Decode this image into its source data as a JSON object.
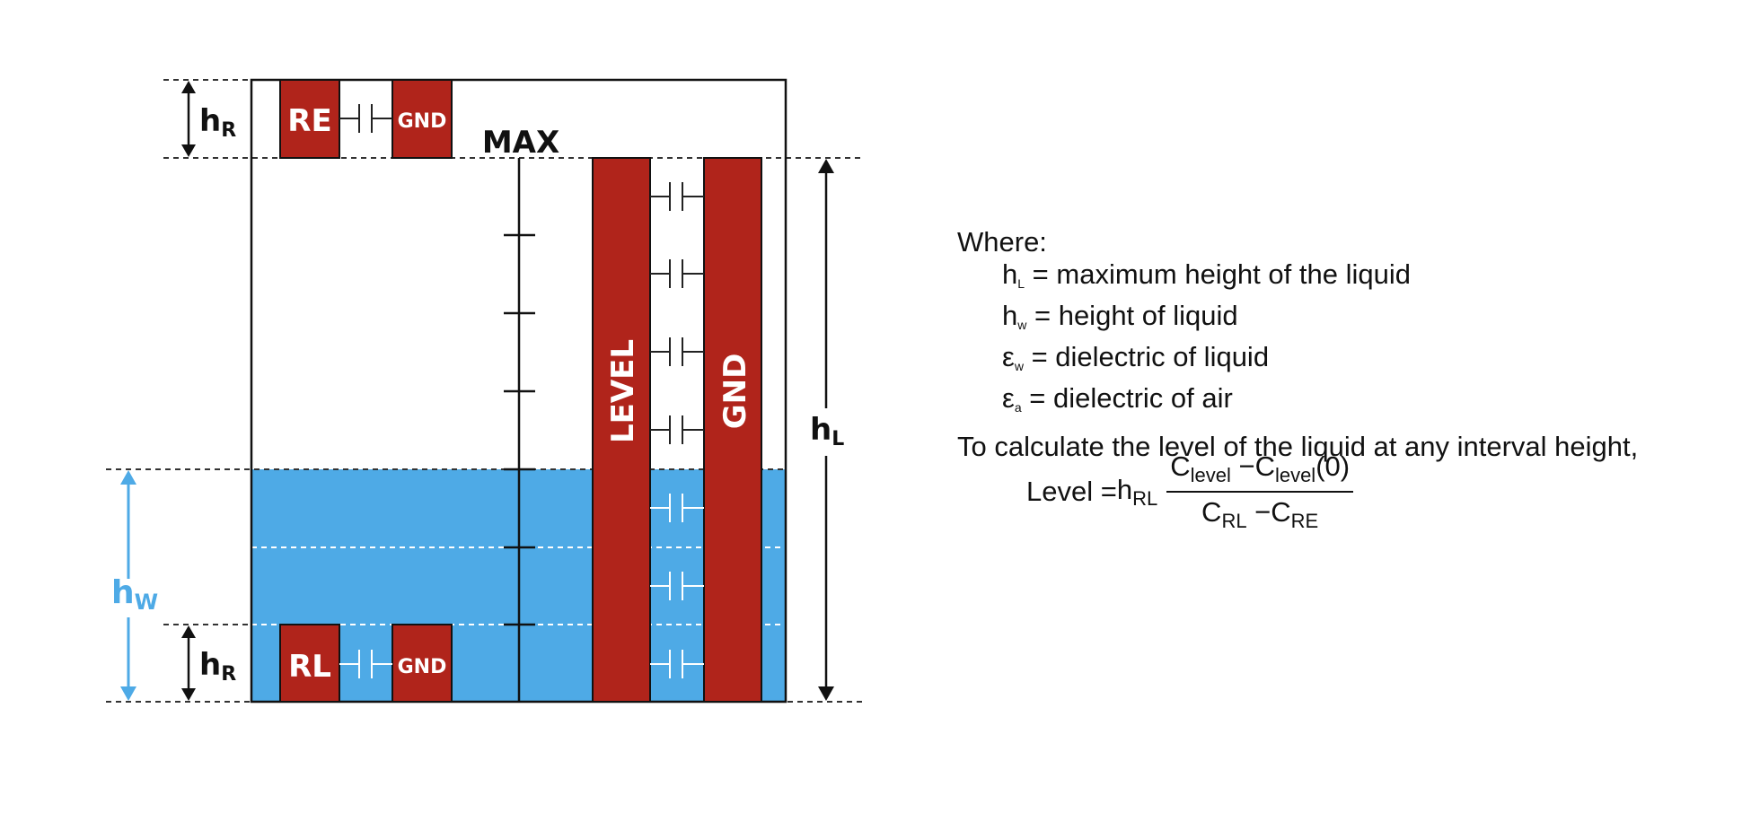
{
  "diagram": {
    "labels": {
      "re": "RE",
      "rl": "RL",
      "gnd": "GND",
      "max": "MAX",
      "level": "LEVEL",
      "h_r_main": "h",
      "h_r_sub": "R",
      "h_l_main": "h",
      "h_l_sub": "L",
      "h_w_main": "h",
      "h_w_sub": "W"
    },
    "colors": {
      "electrode": "#b0241b",
      "liquid": "#4eaae6",
      "outline": "#111111",
      "hw_arrow": "#4eaae6"
    }
  },
  "legend": {
    "where": "Where:",
    "items": [
      {
        "sym": "h",
        "sub": "L",
        "text": " = maximum height of the liquid"
      },
      {
        "sym": "h",
        "sub": "w",
        "text": " = height of liquid"
      },
      {
        "sym": "ε",
        "sub": "w",
        "text": " = dielectric of liquid"
      },
      {
        "sym": "ε",
        "sub": "a",
        "text": " = dielectric of air"
      }
    ],
    "calc_text": "To calculate the level of the liquid at any interval height,"
  },
  "formula": {
    "lhs": "Level =",
    "h": "h",
    "h_sub": "RL",
    "num_c1": "C",
    "num_c1_sub": "level",
    "num_op": " −",
    "num_c2": "C",
    "num_c2_sub": "level",
    "num_arg": "(0)",
    "den_c1": "C",
    "den_c1_sub": "RL",
    "den_op": " −",
    "den_c2": "C",
    "den_c2_sub": "RE"
  }
}
